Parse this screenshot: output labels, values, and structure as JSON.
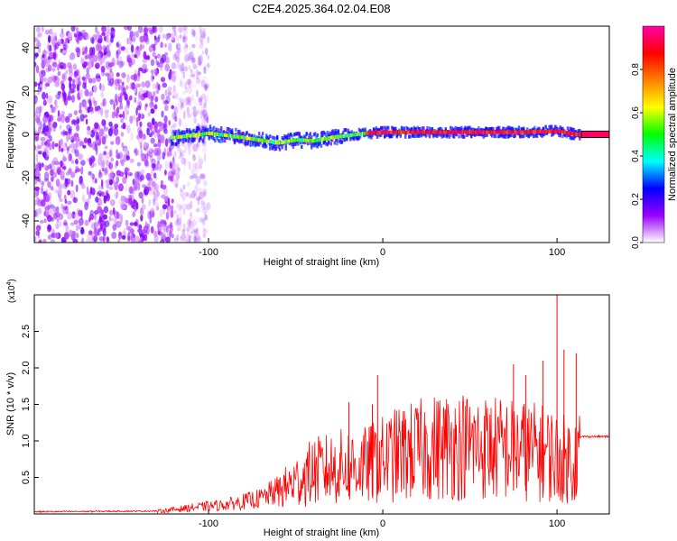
{
  "figure_title": "C2E4.2025.364.02.04.E08",
  "chart_data": [
    {
      "type": "heatmap",
      "title": "",
      "xlabel": "Height of straight line (km)",
      "ylabel": "Frequency (Hz)",
      "xlim": [
        -200,
        130
      ],
      "ylim": [
        -50,
        50
      ],
      "xticks": [
        -100,
        0,
        100
      ],
      "xtick_labels": [
        "-100",
        "0",
        "100"
      ],
      "yticks": [
        -40,
        -20,
        0,
        20,
        40
      ],
      "ytick_labels": [
        "-40",
        "-20",
        "0",
        "20",
        "40"
      ],
      "grid": false,
      "noise_region_x": [
        -200,
        -108
      ],
      "signal_ridge": [
        {
          "x": -120,
          "y": -1.5
        },
        {
          "x": -100,
          "y": 0.5
        },
        {
          "x": -80,
          "y": -1.5
        },
        {
          "x": -60,
          "y": -4
        },
        {
          "x": -50,
          "y": -2.5
        },
        {
          "x": -40,
          "y": -3
        },
        {
          "x": -30,
          "y": -1.5
        },
        {
          "x": -20,
          "y": -0.5
        },
        {
          "x": -10,
          "y": 0.5
        },
        {
          "x": 0,
          "y": 1
        },
        {
          "x": 20,
          "y": 1
        },
        {
          "x": 40,
          "y": 1
        },
        {
          "x": 60,
          "y": 1
        },
        {
          "x": 80,
          "y": 1
        },
        {
          "x": 100,
          "y": 1.5
        },
        {
          "x": 110,
          "y": 0
        },
        {
          "x": 115,
          "y": 0
        },
        {
          "x": 130,
          "y": 0
        }
      ],
      "colorbar": {
        "label": "Normalized spectral amplitude",
        "range": [
          0,
          1
        ],
        "ticks": [
          0.0,
          0.2,
          0.4,
          0.6,
          0.8
        ],
        "tick_labels": [
          "0.0",
          "0.2",
          "0.4",
          "0.6",
          "0.8"
        ],
        "colormap": [
          "#ffffff",
          "#9900ff",
          "#0000ff",
          "#00ffff",
          "#00ff00",
          "#ffff00",
          "#ff8000",
          "#ff0000",
          "#ff00aa"
        ]
      }
    },
    {
      "type": "line",
      "title": "",
      "xlabel": "Height of straight line (km)",
      "ylabel": "SNR (10 * v/v)",
      "y_scale_label": "(x10",
      "y_scale_exponent": "4",
      "y_scale_suffix": ")",
      "xlim": [
        -200,
        130
      ],
      "ylim": [
        0,
        3.0
      ],
      "xticks": [
        -100,
        0,
        100
      ],
      "xtick_labels": [
        "-100",
        "0",
        "100"
      ],
      "yticks": [
        0.5,
        1.0,
        1.5,
        2.0,
        2.5
      ],
      "ytick_labels": [
        "0.5",
        "1.0",
        "1.5",
        "2.0",
        "2.5"
      ],
      "grid": false,
      "line_color": "#ff0000",
      "envelope": [
        {
          "x": -200,
          "y": 0.03
        },
        {
          "x": -130,
          "y": 0.04
        },
        {
          "x": -110,
          "y": 0.1
        },
        {
          "x": -90,
          "y": 0.15
        },
        {
          "x": -70,
          "y": 0.25
        },
        {
          "x": -55,
          "y": 0.45
        },
        {
          "x": -40,
          "y": 0.7
        },
        {
          "x": -30,
          "y": 0.75
        },
        {
          "x": -20,
          "y": 0.8
        },
        {
          "x": -10,
          "y": 0.8
        },
        {
          "x": 0,
          "y": 0.9
        },
        {
          "x": 10,
          "y": 1.0
        },
        {
          "x": 20,
          "y": 1.05
        },
        {
          "x": 40,
          "y": 1.15
        },
        {
          "x": 60,
          "y": 1.1
        },
        {
          "x": 80,
          "y": 1.05
        },
        {
          "x": 95,
          "y": 1.0
        },
        {
          "x": 105,
          "y": 0.9
        },
        {
          "x": 110,
          "y": 0.9
        },
        {
          "x": 114,
          "y": 1.06
        },
        {
          "x": 130,
          "y": 1.06
        }
      ],
      "peaks": [
        {
          "x": -19.5,
          "y": 1.53
        },
        {
          "x": -6,
          "y": 1.5
        },
        {
          "x": -3,
          "y": 1.9
        },
        {
          "x": 75,
          "y": 2.05
        },
        {
          "x": 82,
          "y": 1.9
        },
        {
          "x": 92,
          "y": 2.1
        },
        {
          "x": 100,
          "y": 3.0
        },
        {
          "x": 104,
          "y": 2.25
        },
        {
          "x": 111,
          "y": 2.2
        }
      ]
    }
  ]
}
